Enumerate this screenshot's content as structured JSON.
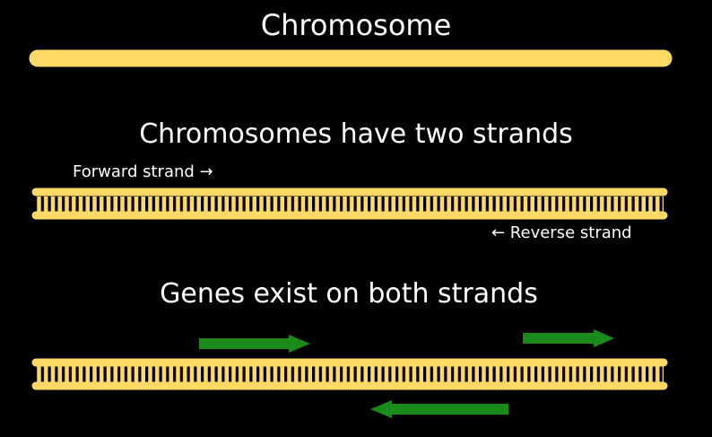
{
  "titles": {
    "chromosome": "Chromosome",
    "two_strands": "Chromosomes have two strands",
    "genes_both": "Genes exist on both strands"
  },
  "labels": {
    "forward_strand": "Forward strand →",
    "reverse_strand": "← Reverse strand"
  },
  "colors": {
    "background": "#000000",
    "chromosome": "#ffd966",
    "rung_gap": "#000000",
    "gene_arrow": "#1a8a1a",
    "text": "#ffffff"
  }
}
